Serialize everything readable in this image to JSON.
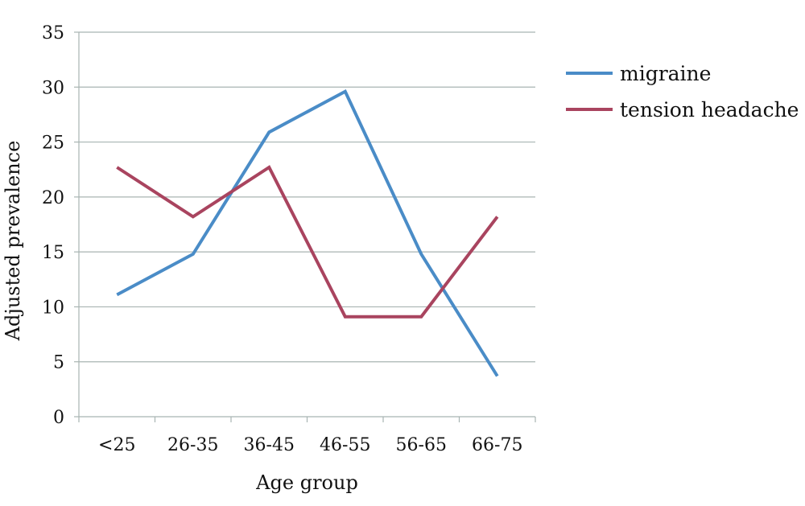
{
  "chart_data": {
    "type": "line",
    "title": "",
    "xlabel": "Age group",
    "ylabel": "Adjusted prevalence",
    "categories": [
      "<25",
      "26-35",
      "36-45",
      "46-55",
      "56-65",
      "66-75"
    ],
    "ylim": [
      0,
      35
    ],
    "yticks": [
      0,
      5,
      10,
      15,
      20,
      25,
      30,
      35
    ],
    "grid": true,
    "legend_position": "right",
    "series": [
      {
        "name": "migraine",
        "color": "#4a8cc7",
        "values": [
          11.1,
          14.8,
          25.9,
          29.6,
          14.8,
          3.7
        ]
      },
      {
        "name": "tension headache",
        "color": "#a9445f",
        "values": [
          22.7,
          18.2,
          22.7,
          9.1,
          9.1,
          18.2
        ]
      }
    ]
  }
}
